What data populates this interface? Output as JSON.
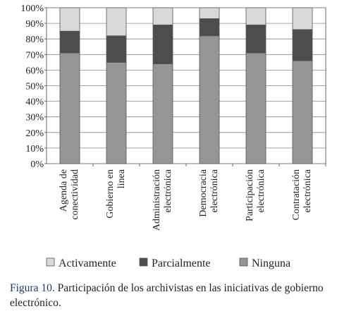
{
  "chart_data": {
    "type": "stacked-bar",
    "categories": [
      [
        "Agenda de",
        "conectividad"
      ],
      [
        "Gobierno en",
        "linea"
      ],
      [
        "Administración",
        "electrónica"
      ],
      [
        "Democracia",
        "electrónica"
      ],
      [
        "Participación",
        "electrónica"
      ],
      [
        "Contratación",
        "electrónica"
      ]
    ],
    "series": [
      {
        "name": "Activamente",
        "color": "#d9d9d9",
        "values": [
          15,
          18,
          11,
          7,
          11,
          14
        ]
      },
      {
        "name": "Parcialmente",
        "color": "#4d4d4d",
        "values": [
          14,
          17,
          25,
          11,
          18,
          20
        ]
      },
      {
        "name": "Ninguna",
        "color": "#969696",
        "values": [
          71,
          65,
          64,
          82,
          71,
          66
        ]
      }
    ],
    "ylim": [
      0,
      100
    ],
    "yticks": [
      {
        "value": 0,
        "label": "0%"
      },
      {
        "value": 10,
        "label": "10%"
      },
      {
        "value": 20,
        "label": "20%"
      },
      {
        "value": 30,
        "label": "30%"
      },
      {
        "value": 40,
        "label": "40%"
      },
      {
        "value": 50,
        "label": "50%"
      },
      {
        "value": 60,
        "label": "60%"
      },
      {
        "value": 70,
        "label": "70%"
      },
      {
        "value": 80,
        "label": "80%"
      },
      {
        "value": 90,
        "label": "90%"
      },
      {
        "value": 100,
        "label": "100%"
      }
    ],
    "grid": true,
    "caption_label": "Figura 10.",
    "caption": "Participación de los archivistas en las iniciativas de gobierno electrónico."
  }
}
